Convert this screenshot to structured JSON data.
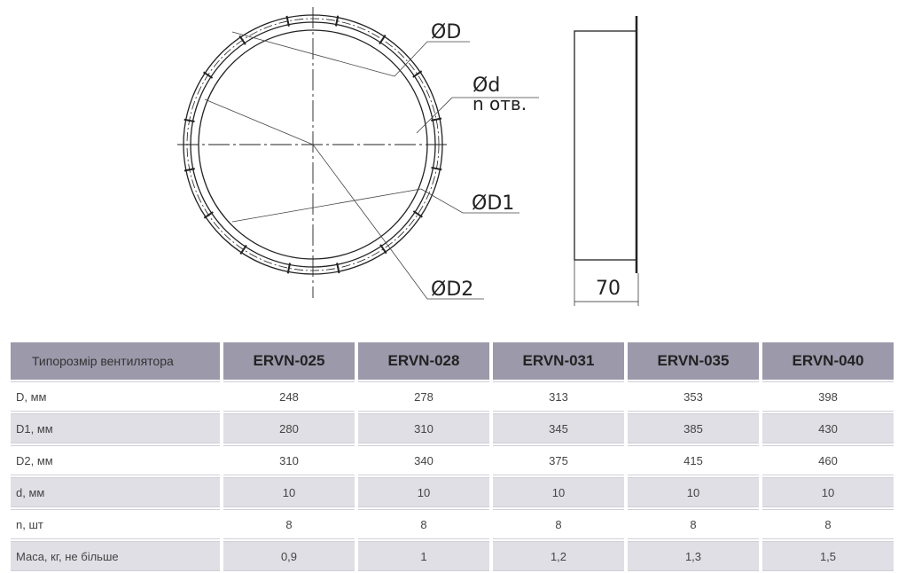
{
  "drawing": {
    "labels": {
      "D": "ØD",
      "d": "Ød",
      "n": "n отв.",
      "D1": "ØD1",
      "D2": "ØD2",
      "width": "70"
    }
  },
  "table": {
    "header": [
      "Типорозмір вентилятора",
      "ERVN-025",
      "ERVN-028",
      "ERVN-031",
      "ERVN-035",
      "ERVN-040"
    ],
    "rows": [
      [
        "D, мм",
        "248",
        "278",
        "313",
        "353",
        "398"
      ],
      [
        "D1, мм",
        "280",
        "310",
        "345",
        "385",
        "430"
      ],
      [
        "D2, мм",
        "310",
        "340",
        "375",
        "415",
        "460"
      ],
      [
        "d, мм",
        "10",
        "10",
        "10",
        "10",
        "10"
      ],
      [
        "n, шт",
        "8",
        "8",
        "8",
        "8",
        "8"
      ],
      [
        "Маса, кг, не більше",
        "0,9",
        "1",
        "1,2",
        "1,3",
        "1,5"
      ]
    ]
  }
}
